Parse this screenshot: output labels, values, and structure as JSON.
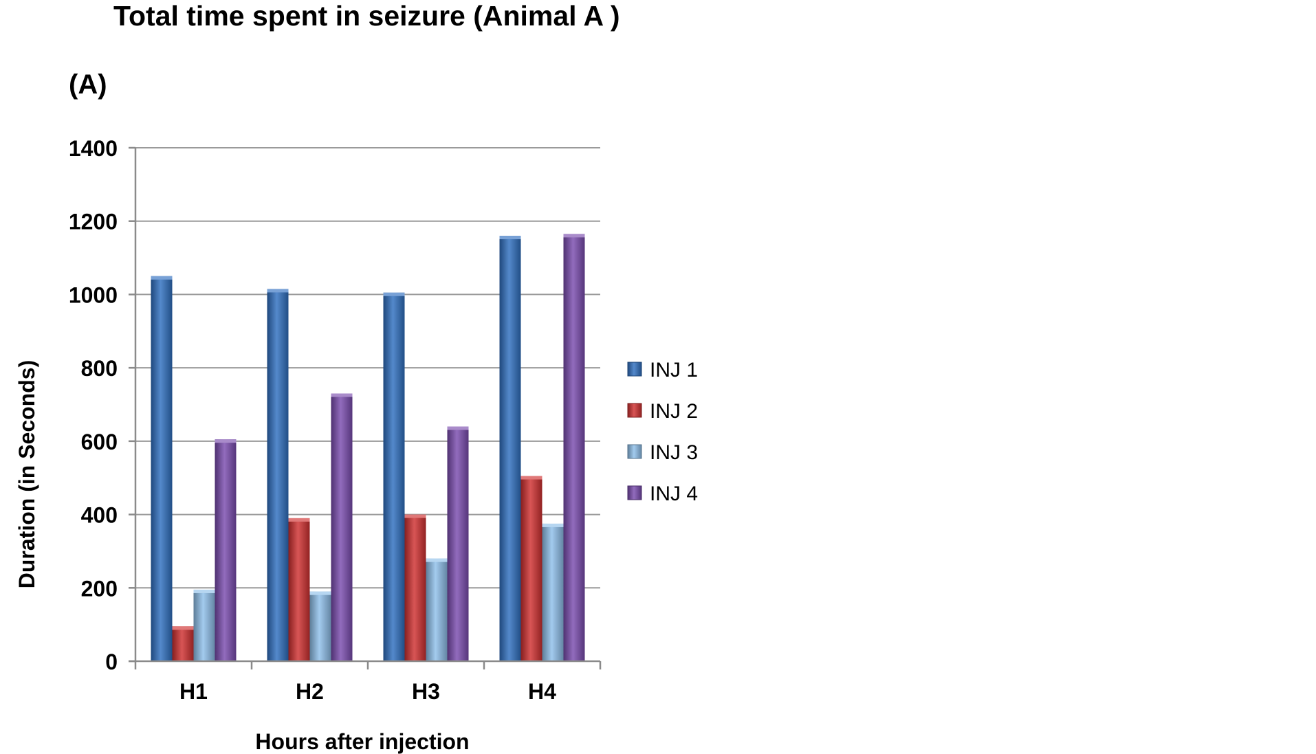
{
  "chart_data": {
    "type": "bar",
    "title": "Total time spent in seizure (Animal A )",
    "panel_label": "(A)",
    "xlabel": "Hours after injection",
    "ylabel": "Duration (in Seconds)",
    "categories": [
      "H1",
      "H2",
      "H3",
      "H4"
    ],
    "ylim": [
      0,
      1400
    ],
    "yticks": [
      0,
      200,
      400,
      600,
      800,
      1000,
      1200,
      1400
    ],
    "ytick_labels": [
      "0",
      "200",
      "400",
      "600",
      "800",
      "1000",
      "1200",
      "1400"
    ],
    "grid": true,
    "legend_position": "right",
    "series": [
      {
        "name": "INJ 1",
        "color": "#2f6fc0",
        "values": [
          1050,
          1015,
          1005,
          1160
        ]
      },
      {
        "name": "INJ 2",
        "color": "#d03030",
        "values": [
          95,
          390,
          400,
          505
        ]
      },
      {
        "name": "INJ 3",
        "color": "#8fc0ea",
        "values": [
          195,
          190,
          280,
          375
        ]
      },
      {
        "name": "INJ 4",
        "color": "#7a4cae",
        "values": [
          605,
          730,
          640,
          1165
        ]
      }
    ]
  }
}
